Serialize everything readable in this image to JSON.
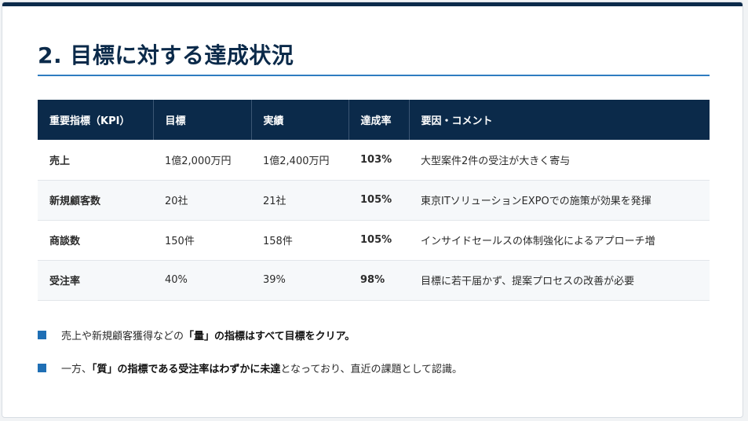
{
  "slide": {
    "title": "2. 目標に対する達成状況"
  },
  "table": {
    "headers": [
      "重要指標（KPI）",
      "目標",
      "実績",
      "達成率",
      "要因・コメント"
    ],
    "rows": [
      {
        "metric": "売上",
        "target": "1億2,000万円",
        "actual": "1億2,400万円",
        "rate": "103%",
        "comment": "大型案件2件の受注が大きく寄与"
      },
      {
        "metric": "新規顧客数",
        "target": "20社",
        "actual": "21社",
        "rate": "105%",
        "comment": "東京ITソリューションEXPOでの施策が効果を発揮"
      },
      {
        "metric": "商談数",
        "target": "150件",
        "actual": "158件",
        "rate": "105%",
        "comment": "インサイドセールスの体制強化によるアプローチ増"
      },
      {
        "metric": "受注率",
        "target": "40%",
        "actual": "39%",
        "rate": "98%",
        "comment": "目標に若干届かず、提案プロセスの改善が必要"
      }
    ]
  },
  "bullets": [
    {
      "prefix": "売上や新規顧客獲得などの",
      "bold": "「量」の指標はすべて目標をクリア。",
      "suffix": ""
    },
    {
      "prefix": "一方、",
      "bold": "「質」の指標である受注率はわずかに未達",
      "suffix": "となっており、直近の課題として認識。"
    }
  ],
  "colors": {
    "navy": "#0b2a4a",
    "accent_blue": "#2f7dc1",
    "bullet_blue": "#1f6fb5"
  }
}
